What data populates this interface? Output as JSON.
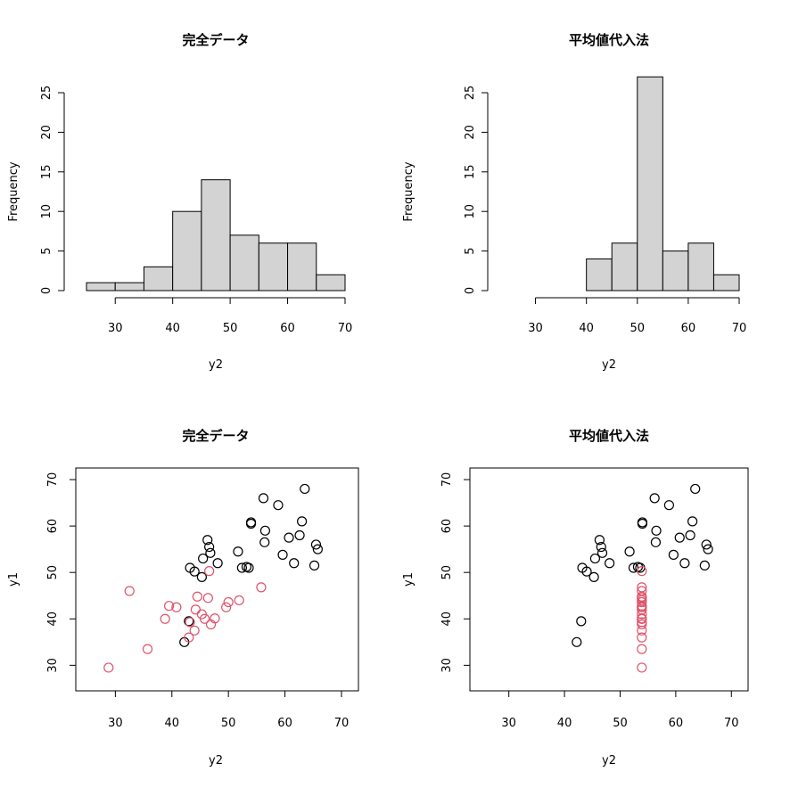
{
  "chart_data": [
    {
      "type": "histogram",
      "title": "完全データ",
      "xlabel": "y2",
      "ylabel": "Frequency",
      "bin_edges": [
        25,
        30,
        35,
        40,
        45,
        50,
        55,
        60,
        65,
        70
      ],
      "values": [
        1,
        1,
        3,
        10,
        14,
        7,
        6,
        6,
        2
      ],
      "xticks": [
        30,
        40,
        50,
        60,
        70
      ],
      "yticks": [
        0,
        5,
        10,
        15,
        20,
        25
      ],
      "xlim": [
        25,
        70
      ],
      "ylim": [
        0,
        25
      ],
      "bar_color": "#D3D3D3"
    },
    {
      "type": "histogram",
      "title": "平均値代入法",
      "xlabel": "y2",
      "ylabel": "Frequency",
      "bin_edges": [
        40,
        45,
        50,
        55,
        60,
        65,
        70
      ],
      "values": [
        4,
        6,
        27,
        5,
        6,
        2
      ],
      "xticks": [
        30,
        40,
        50,
        60,
        70
      ],
      "yticks": [
        0,
        5,
        10,
        15,
        20,
        25
      ],
      "xlim": [
        25,
        70
      ],
      "ylim": [
        0,
        25
      ],
      "bar_color": "#D3D3D3"
    },
    {
      "type": "scatter",
      "title": "完全データ",
      "xlabel": "y2",
      "ylabel": "y1",
      "xlim": [
        23,
        73
      ],
      "ylim": [
        24.5,
        72.5
      ],
      "xticks": [
        30,
        40,
        50,
        60,
        70
      ],
      "yticks": [
        30,
        40,
        50,
        60,
        70
      ],
      "series": [
        {
          "color": "#000000",
          "points": [
            [
              42.2,
              35
            ],
            [
              43,
              39.5
            ],
            [
              43.2,
              51
            ],
            [
              44,
              50.2
            ],
            [
              45.3,
              49
            ],
            [
              45.5,
              53
            ],
            [
              46.3,
              57
            ],
            [
              46.6,
              55.5
            ],
            [
              46.8,
              54.2
            ],
            [
              48.1,
              52
            ],
            [
              51.7,
              54.5
            ],
            [
              52.4,
              51
            ],
            [
              53.2,
              51.2
            ],
            [
              53.6,
              51
            ],
            [
              54,
              60.8
            ],
            [
              54,
              60.5
            ],
            [
              56.2,
              66
            ],
            [
              56.4,
              56.5
            ],
            [
              56.5,
              59
            ],
            [
              58.8,
              64.5
            ],
            [
              59.6,
              53.8
            ],
            [
              60.7,
              57.5
            ],
            [
              61.6,
              52
            ],
            [
              62.6,
              58
            ],
            [
              63,
              61
            ],
            [
              63.5,
              68
            ],
            [
              65.2,
              51.5
            ],
            [
              65.5,
              56
            ],
            [
              65.8,
              55
            ]
          ]
        },
        {
          "color": "#DF536B",
          "points": [
            [
              28.8,
              29.5
            ],
            [
              32.5,
              46
            ],
            [
              35.7,
              33.5
            ],
            [
              38.8,
              40
            ],
            [
              39.5,
              42.8
            ],
            [
              40.8,
              42.5
            ],
            [
              43,
              36
            ],
            [
              43.2,
              39.3
            ],
            [
              44,
              37.5
            ],
            [
              44.2,
              42
            ],
            [
              44.5,
              44.8
            ],
            [
              45.3,
              41
            ],
            [
              45.8,
              40
            ],
            [
              46.4,
              44.5
            ],
            [
              46.6,
              50.3
            ],
            [
              46.9,
              38.8
            ],
            [
              47.6,
              40.1
            ],
            [
              49.6,
              42.5
            ],
            [
              50,
              43.6
            ],
            [
              51.9,
              44
            ],
            [
              55.8,
              46.8
            ]
          ]
        }
      ]
    },
    {
      "type": "scatter",
      "title": "平均値代入法",
      "xlabel": "y2",
      "ylabel": "y1",
      "xlim": [
        23,
        73
      ],
      "ylim": [
        24.5,
        72.5
      ],
      "xticks": [
        30,
        40,
        50,
        60,
        70
      ],
      "yticks": [
        30,
        40,
        50,
        60,
        70
      ],
      "series": [
        {
          "color": "#000000",
          "points": [
            [
              42.2,
              35
            ],
            [
              43,
              39.5
            ],
            [
              43.2,
              51
            ],
            [
              44,
              50.2
            ],
            [
              45.3,
              49
            ],
            [
              45.5,
              53
            ],
            [
              46.3,
              57
            ],
            [
              46.6,
              55.5
            ],
            [
              46.8,
              54.2
            ],
            [
              48.1,
              52
            ],
            [
              51.7,
              54.5
            ],
            [
              52.4,
              51
            ],
            [
              53.2,
              51.2
            ],
            [
              53.6,
              51
            ],
            [
              54,
              60.8
            ],
            [
              54,
              60.5
            ],
            [
              56.2,
              66
            ],
            [
              56.4,
              56.5
            ],
            [
              56.5,
              59
            ],
            [
              58.8,
              64.5
            ],
            [
              59.6,
              53.8
            ],
            [
              60.7,
              57.5
            ],
            [
              61.6,
              52
            ],
            [
              62.6,
              58
            ],
            [
              63,
              61
            ],
            [
              63.5,
              68
            ],
            [
              65.2,
              51.5
            ],
            [
              65.5,
              56
            ],
            [
              65.8,
              55
            ]
          ]
        },
        {
          "color": "#DF536B",
          "points": [
            [
              53.9,
              29.5
            ],
            [
              53.9,
              46
            ],
            [
              53.9,
              33.5
            ],
            [
              53.9,
              40
            ],
            [
              53.9,
              42.8
            ],
            [
              53.9,
              42.5
            ],
            [
              53.9,
              36
            ],
            [
              53.9,
              39.3
            ],
            [
              53.9,
              37.5
            ],
            [
              53.9,
              42
            ],
            [
              53.9,
              44.8
            ],
            [
              53.9,
              41
            ],
            [
              53.9,
              40
            ],
            [
              53.9,
              44.5
            ],
            [
              53.9,
              50.3
            ],
            [
              53.9,
              38.8
            ],
            [
              53.9,
              40.1
            ],
            [
              53.9,
              42.5
            ],
            [
              53.9,
              43.6
            ],
            [
              53.9,
              44
            ],
            [
              53.9,
              46.8
            ]
          ]
        }
      ]
    }
  ]
}
